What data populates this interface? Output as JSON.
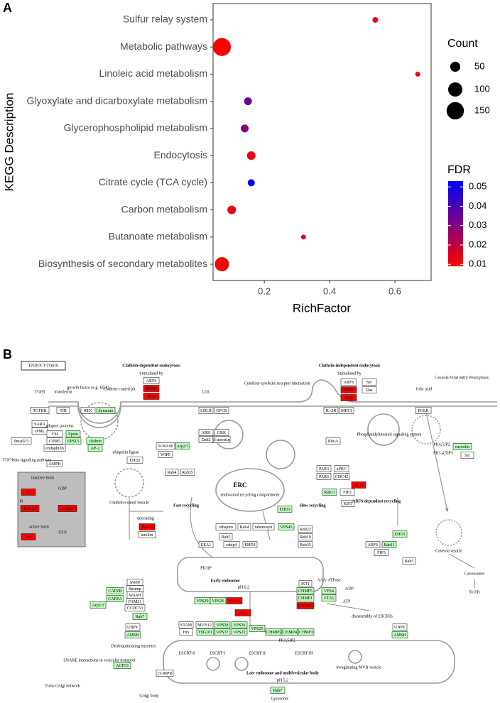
{
  "chart_data": {
    "type": "scatter",
    "panel_label": "A",
    "categories": [
      "Sulfur relay system",
      "Metabolic pathways",
      "Linoleic acid metabolism",
      "Glyoxylate and dicarboxylate metabolism",
      "Glycerophospholipid metabolism",
      "Endocytosis",
      "Citrate cycle (TCA cycle)",
      "Carbon metabolism",
      "Butanoate metabolism",
      "Biosynthesis of secondary metabolites"
    ],
    "x": [
      0.54,
      0.07,
      0.67,
      0.15,
      0.14,
      0.16,
      0.16,
      0.1,
      0.32,
      0.07
    ],
    "count": [
      16,
      160,
      12,
      30,
      30,
      36,
      25,
      36,
      12,
      100
    ],
    "fdr": [
      0.01,
      0.009,
      0.012,
      0.034,
      0.03,
      0.012,
      0.052,
      0.012,
      0.015,
      0.009
    ],
    "xlim": [
      0.043,
      0.711
    ],
    "xticks": [
      0.2,
      0.4,
      0.6
    ],
    "x_label": "RichFactor",
    "y_label": "KEGG Description",
    "size_title": "Count",
    "size_ticks": [
      50,
      100,
      150
    ],
    "color_title": "FDR",
    "color_lim": [
      0.009,
      0.053
    ],
    "color_ticks": [
      0.01,
      0.02,
      0.03,
      0.04,
      0.05
    ],
    "color_low": "#ff0000",
    "color_high": "#0000ff"
  },
  "diagram": {
    "panel_label": "B",
    "title": "ENDOCYTOSIS",
    "boxes": [
      {
        "label": "TGFBR",
        "color": "#ffffff"
      },
      {
        "label": "TfR",
        "color": "#ffffff"
      },
      {
        "label": "RTK",
        "color": "#ffffff"
      },
      {
        "label": "dynamin",
        "color": "#bfffbf"
      },
      {
        "label": "SARA",
        "color": "#ffffff"
      },
      {
        "label": "cPML",
        "color": "#ffffff"
      },
      {
        "label": "Smad2/3",
        "color": "#ffffff"
      },
      {
        "label": "Cbl",
        "color": "#ffffff"
      },
      {
        "label": "CIN85",
        "color": "#ffffff"
      },
      {
        "label": "endophilin",
        "color": "#ffffff"
      },
      {
        "label": "Epsin",
        "color": "#bfffbf"
      },
      {
        "label": "EPS15",
        "color": "#bfffbf"
      },
      {
        "label": "clathrin",
        "color": "#bfffbf"
      },
      {
        "label": "AP-2",
        "color": "#bfffbf"
      },
      {
        "label": "AMPH",
        "color": "#ffffff"
      },
      {
        "label": "EHD2",
        "color": "#ffffff"
      },
      {
        "label": "ARF6",
        "color": "#ffffff"
      },
      {
        "label": "PIP5K",
        "color": "#ff0000"
      },
      {
        "label": "PLD",
        "color": "#ff0000"
      },
      {
        "label": "LDLR",
        "color": "#ffffff"
      },
      {
        "label": "GPCR",
        "color": "#ffffff"
      },
      {
        "label": "ARH",
        "color": "#ffffff"
      },
      {
        "label": "Dab2",
        "color": "#ffffff"
      },
      {
        "label": "GRK",
        "color": "#ffffff"
      },
      {
        "label": "β-arrestin",
        "color": "#ffffff"
      },
      {
        "label": "N-WASP",
        "color": "#ffffff"
      },
      {
        "label": "Arp2/3",
        "color": "#bfffbf"
      },
      {
        "label": "WIPF",
        "color": "#ffffff"
      },
      {
        "label": "Rab4",
        "color": "#ffffff"
      },
      {
        "label": "Rab35",
        "color": "#ffffff"
      },
      {
        "label": "ARF6",
        "color": "#ffffff"
      },
      {
        "label": "PIP5K",
        "color": "#ff0000"
      },
      {
        "label": "PLD",
        "color": "#ff0000"
      },
      {
        "label": "Src",
        "color": "#ffffff"
      },
      {
        "label": "Ras",
        "color": "#ffffff"
      },
      {
        "label": "IL-2R",
        "color": "#ffffff"
      },
      {
        "label": "MHCI",
        "color": "#ffffff"
      },
      {
        "label": "RhoA",
        "color": "#ffffff"
      },
      {
        "label": "POLR",
        "color": "#ffffff"
      },
      {
        "label": "caveolin",
        "color": "#bfffbf"
      },
      {
        "label": "Src",
        "color": "#ffffff"
      },
      {
        "label": "PAR3",
        "color": "#ffffff"
      },
      {
        "label": "aPKC",
        "color": "#ffffff"
      },
      {
        "label": "PAR6",
        "color": "#ffffff"
      },
      {
        "label": "CDC42",
        "color": "#ffffff"
      },
      {
        "label": "PLD",
        "color": "#ff0000"
      },
      {
        "label": "Rab11",
        "color": "#bfffbf"
      },
      {
        "label": "FIP2",
        "color": "#ffffff"
      },
      {
        "label": "KIF5",
        "color": "#ffffff"
      },
      {
        "label": "Hsc70",
        "color": "#ff0000"
      },
      {
        "label": "auxilin",
        "color": "#ffffff"
      },
      {
        "label": "Arf",
        "color": "#ff0000"
      },
      {
        "label": "ArfGAP",
        "color": "#ff0000"
      },
      {
        "label": "ArfGEF",
        "color": "#ff0000"
      },
      {
        "label": "Arf",
        "color": "#ff0000"
      },
      {
        "label": "EHD1",
        "color": "#bfffbf"
      },
      {
        "label": "Rab22",
        "color": "#ffffff"
      },
      {
        "label": "Rab10",
        "color": "#ffffff"
      },
      {
        "label": "rabaptin",
        "color": "#ffffff"
      },
      {
        "label": "Rab4",
        "color": "#ffffff"
      },
      {
        "label": "rabenosyn",
        "color": "#ffffff"
      },
      {
        "label": "VPS45",
        "color": "#bfffbf"
      },
      {
        "label": "Rab5",
        "color": "#ffffff"
      },
      {
        "label": "EEA1",
        "color": "#ffffff"
      },
      {
        "label": "rabip4",
        "color": "#ffffff"
      },
      {
        "label": "EHD3",
        "color": "#ffffff"
      },
      {
        "label": "Rab35",
        "color": "#ffffff"
      },
      {
        "label": "ARF6",
        "color": "#ffffff"
      },
      {
        "label": "Rab11",
        "color": "#bfffbf"
      },
      {
        "label": "FIP3",
        "color": "#ffffff"
      },
      {
        "label": "EHD1",
        "color": "#bfffbf"
      },
      {
        "label": "CAPZB",
        "color": "#bfffbf"
      },
      {
        "label": "CAPZA",
        "color": "#bfffbf"
      },
      {
        "label": "SWIP",
        "color": "#ffffff"
      },
      {
        "label": "Strump",
        "color": "#ffffff"
      },
      {
        "label": "WASH",
        "color": "#ffffff"
      },
      {
        "label": "FAM21",
        "color": "#ffffff"
      },
      {
        "label": "CCDC53",
        "color": "#ffffff"
      },
      {
        "label": "Arp2/3",
        "color": "#bfffbf"
      },
      {
        "label": "Rab7",
        "color": "#bfffbf"
      },
      {
        "label": "UBPY",
        "color": "#ffffff"
      },
      {
        "label": "AMSH",
        "color": "#bfffbf"
      },
      {
        "label": "VPS29",
        "color": "#bfffbf"
      },
      {
        "label": "VPS26",
        "color": "#bfffbf"
      },
      {
        "label": "VPS35",
        "color": "#ff0000"
      },
      {
        "label": "Alix",
        "color": "#ff0000"
      },
      {
        "label": "IST1",
        "color": "#ffffff"
      },
      {
        "label": "CHMP5",
        "color": "#bfffbf"
      },
      {
        "label": "CHMP1",
        "color": "#bfffbf"
      },
      {
        "label": "VPS4",
        "color": "#bfffbf"
      },
      {
        "label": "VTA1",
        "color": "#bfffbf"
      },
      {
        "label": "STAM",
        "color": "#ffffff"
      },
      {
        "label": "Hrs",
        "color": "#ffffff"
      },
      {
        "label": "MVB12",
        "color": "#ffffff"
      },
      {
        "label": "TSG101",
        "color": "#bfffbf"
      },
      {
        "label": "VPS28",
        "color": "#bfffbf"
      },
      {
        "label": "VPS37",
        "color": "#bfffbf"
      },
      {
        "label": "VPS36",
        "color": "#bfffbf"
      },
      {
        "label": "VPS22",
        "color": "#bfffbf"
      },
      {
        "label": "VPS25",
        "color": "#bfffbf"
      },
      {
        "label": "CHMP6",
        "color": "#bfffbf"
      },
      {
        "label": "CHMP4",
        "color": "#bfffbf"
      },
      {
        "label": "CHMP3",
        "color": "#bfffbf"
      },
      {
        "label": "CHMP2",
        "color": "#ff0000"
      },
      {
        "label": "UBPY",
        "color": "#ffffff"
      },
      {
        "label": "AMSH",
        "color": "#bfffbf"
      },
      {
        "label": "ACP33",
        "color": "#bfffbf"
      },
      {
        "label": "CI-MPR",
        "color": "#ffffff"
      },
      {
        "label": "Rab7",
        "color": "#bfffbf"
      },
      {
        "label": "Rab5",
        "color": "#ffffff"
      }
    ],
    "labels": [
      "Clathrin-dependent endocytosis",
      "Stimulated by",
      "Clathrin-independent endocytosis",
      "Stimulated by",
      "TGFβ",
      "transferrin",
      "growth factor (e.g. EGF)",
      "Clathrin-coated pit",
      "LDL",
      "Cytokine-cytokine receptor interaction",
      "folic acid",
      "Caveola Viral entry Potocytosis",
      "adaptor proteins",
      "ubiquitin ligase",
      "TGF-beta signaling pathway",
      "Phosphatidylinositol signaling system",
      "PI(4,5)P2",
      "PI(3,4,5)P3",
      "Clathrin-coated vesicle",
      "Fast recycling",
      "ERC",
      "endosomal recycling compartment",
      "Slow recycling",
      "ARF6 dependent recycling",
      "uncoating",
      "inactive form",
      "GDP",
      "Pi",
      "active form",
      "GTP",
      "Caveola vesicle",
      "Caveosome",
      "To ER",
      "Early endosome",
      "pH 6.2",
      "PI(3)P",
      "AAA-ATPase",
      "ADP",
      "ATP",
      "disassembly of ESCRTs",
      "Deubiquitinating enzymes",
      "SNARE interactions in vesicular transport",
      "ESCRT-0",
      "ESCRT-I",
      "ESCRT-II",
      "ESCRT-III",
      "PI(3,5)P2",
      "Late endosome and multivesicular body",
      "pH 5.2",
      "Lysosome",
      "Trans Golgi network",
      "Golgi body",
      "invaginating MVB vesicle"
    ]
  }
}
